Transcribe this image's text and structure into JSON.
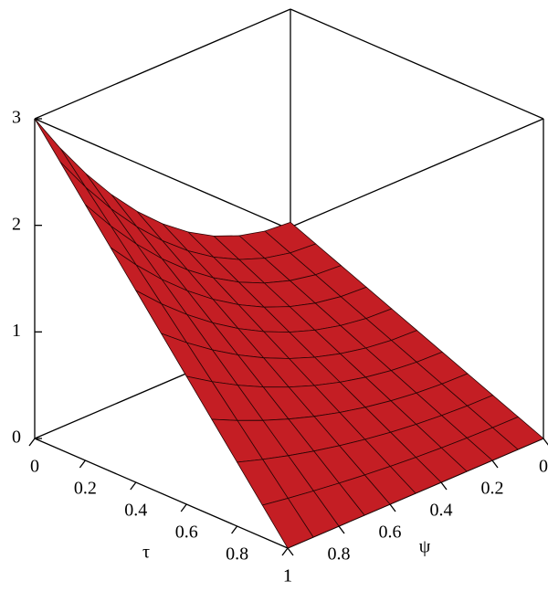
{
  "chart_data": {
    "type": "surface",
    "xlabel": "τ",
    "ylabel": "ψ",
    "color": "#c41e24",
    "x": [
      0,
      0.1,
      0.2,
      0.3,
      0.4,
      0.5,
      0.6,
      0.7,
      0.8,
      0.9,
      1
    ],
    "y": [
      0,
      0.1,
      0.2,
      0.3,
      0.4,
      0.5,
      0.6,
      0.7,
      0.8,
      0.9,
      1
    ],
    "z": [
      [
        1,
        1.02,
        1.08,
        1.18,
        1.32,
        1.5,
        1.72,
        1.98,
        2.28,
        2.62,
        3
      ],
      [
        0.9,
        0.918,
        0.972,
        1.062,
        1.188,
        1.35,
        1.548,
        1.782,
        2.052,
        2.358,
        2.7
      ],
      [
        0.8,
        0.816,
        0.864,
        0.944,
        1.056,
        1.2,
        1.376,
        1.584,
        1.824,
        2.096,
        2.4
      ],
      [
        0.7,
        0.714,
        0.756,
        0.826,
        0.924,
        1.05,
        1.204,
        1.386,
        1.596,
        1.834,
        2.1
      ],
      [
        0.6,
        0.612,
        0.648,
        0.708,
        0.792,
        0.9,
        1.032,
        1.188,
        1.368,
        1.572,
        1.8
      ],
      [
        0.5,
        0.51,
        0.54,
        0.59,
        0.66,
        0.75,
        0.86,
        0.99,
        1.14,
        1.31,
        1.5
      ],
      [
        0.4,
        0.408,
        0.432,
        0.472,
        0.528,
        0.6,
        0.688,
        0.792,
        0.912,
        1.048,
        1.2
      ],
      [
        0.3,
        0.306,
        0.324,
        0.354,
        0.396,
        0.45,
        0.516,
        0.594,
        0.684,
        0.786,
        0.9
      ],
      [
        0.2,
        0.204,
        0.216,
        0.236,
        0.264,
        0.3,
        0.344,
        0.396,
        0.456,
        0.524,
        0.6
      ],
      [
        0.1,
        0.102,
        0.108,
        0.118,
        0.132,
        0.15,
        0.172,
        0.198,
        0.228,
        0.262,
        0.3
      ],
      [
        0,
        0,
        0,
        0,
        0,
        0,
        0,
        0,
        0,
        0,
        0
      ]
    ],
    "xlim": [
      0,
      1
    ],
    "ylim": [
      0,
      1
    ],
    "zlim": [
      0,
      3
    ],
    "xticks": [
      0,
      0.2,
      0.4,
      0.6,
      0.8,
      1
    ],
    "yticks": [
      0,
      0.2,
      0.4,
      0.6,
      0.8,
      1
    ],
    "zticks": [
      0,
      1,
      2,
      3
    ]
  }
}
